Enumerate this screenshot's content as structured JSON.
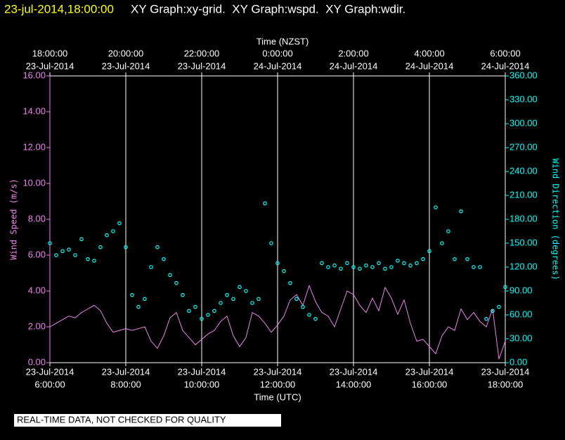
{
  "chart_data": {
    "type": "xy",
    "title_time": "23-jul-2014,18:00:00",
    "title": "XY Graph:xy-grid.  XY Graph:wspd.  XY Graph:wdir.",
    "xlabel": "Time (UTC)",
    "x2label": "Time (NZST)",
    "ylabel": "Wind Speed (m/s)",
    "y2label": "Wind Direction (degrees)",
    "footer": "REAL-TIME DATA, NOT CHECKED FOR QUALITY",
    "grid": true,
    "xlim": [
      6,
      18
    ],
    "xticks": [
      {
        "value": 6,
        "label": [
          "23-Jul-2014",
          "6:00:00"
        ]
      },
      {
        "value": 8,
        "label": [
          "23-Jul-2014",
          "8:00:00"
        ]
      },
      {
        "value": 10,
        "label": [
          "23-Jul-2014",
          "10:00:00"
        ]
      },
      {
        "value": 12,
        "label": [
          "23-Jul-2014",
          "12:00:00"
        ]
      },
      {
        "value": 14,
        "label": [
          "23-Jul-2014",
          "14:00:00"
        ]
      },
      {
        "value": 16,
        "label": [
          "23-Jul-2014",
          "16:00:00"
        ]
      },
      {
        "value": 18,
        "label": [
          "23-Jul-2014",
          "18:00:00"
        ]
      }
    ],
    "x2ticks": [
      {
        "value": 6,
        "label": [
          "18:00:00",
          "23-Jul-2014"
        ]
      },
      {
        "value": 8,
        "label": [
          "20:00:00",
          "23-Jul-2014"
        ]
      },
      {
        "value": 10,
        "label": [
          "22:00:00",
          "23-Jul-2014"
        ]
      },
      {
        "value": 12,
        "label": [
          "0:00:00",
          "24-Jul-2014"
        ]
      },
      {
        "value": 14,
        "label": [
          "2:00:00",
          "24-Jul-2014"
        ]
      },
      {
        "value": 16,
        "label": [
          "4:00:00",
          "24-Jul-2014"
        ]
      },
      {
        "value": 18,
        "label": [
          "6:00:00",
          "24-Jul-2014"
        ]
      }
    ],
    "ylim": [
      0,
      16
    ],
    "yticks": [
      {
        "value": 0,
        "label": "0.00"
      },
      {
        "value": 2,
        "label": "2.00"
      },
      {
        "value": 4,
        "label": "4.00"
      },
      {
        "value": 6,
        "label": "6.00"
      },
      {
        "value": 8,
        "label": "8.00"
      },
      {
        "value": 10,
        "label": "10.00"
      },
      {
        "value": 12,
        "label": "12.00"
      },
      {
        "value": 14,
        "label": "14.00"
      },
      {
        "value": 16,
        "label": "16.00"
      }
    ],
    "y2lim": [
      0,
      360
    ],
    "y2ticks": [
      {
        "value": 0,
        "label": "0.00"
      },
      {
        "value": 30,
        "label": "30.00"
      },
      {
        "value": 60,
        "label": "60.00"
      },
      {
        "value": 90,
        "label": "90.00"
      },
      {
        "value": 120,
        "label": "120.00"
      },
      {
        "value": 150,
        "label": "150.00"
      },
      {
        "value": 180,
        "label": "180.00"
      },
      {
        "value": 210,
        "label": "210.00"
      },
      {
        "value": 240,
        "label": "240.00"
      },
      {
        "value": 270,
        "label": "270.00"
      },
      {
        "value": 300,
        "label": "300.00"
      },
      {
        "value": 330,
        "label": "330.00"
      },
      {
        "value": 360,
        "label": "360.00"
      }
    ],
    "x": [
      6,
      6.1667,
      6.3333,
      6.5,
      6.6667,
      6.8333,
      7,
      7.1667,
      7.3333,
      7.5,
      7.6667,
      7.8333,
      8,
      8.1667,
      8.3333,
      8.5,
      8.6667,
      8.8333,
      9,
      9.1667,
      9.3333,
      9.5,
      9.6667,
      9.8333,
      10,
      10.1667,
      10.3333,
      10.5,
      10.6667,
      10.8333,
      11,
      11.1667,
      11.3333,
      11.5,
      11.6667,
      11.8333,
      12,
      12.1667,
      12.3333,
      12.5,
      12.6667,
      12.8333,
      13,
      13.1667,
      13.3333,
      13.5,
      13.6667,
      13.8333,
      14,
      14.1667,
      14.3333,
      14.5,
      14.6667,
      14.8333,
      15,
      15.1667,
      15.3333,
      15.5,
      15.6667,
      15.8333,
      16,
      16.1667,
      16.3333,
      16.5,
      16.6667,
      16.8333,
      17,
      17.1667,
      17.3333,
      17.5,
      17.6667,
      17.8333,
      18
    ],
    "series": [
      {
        "name": "wspd",
        "kind": "line",
        "color": "#ee82ee",
        "axis": "y",
        "values": [
          2.0,
          2.2,
          2.4,
          2.6,
          2.5,
          2.8,
          3.0,
          3.2,
          2.9,
          2.2,
          1.7,
          1.8,
          1.9,
          1.8,
          1.9,
          2.0,
          1.2,
          0.8,
          1.5,
          2.5,
          2.8,
          1.8,
          1.4,
          1.0,
          1.3,
          1.6,
          1.8,
          2.3,
          2.6,
          1.5,
          0.9,
          1.4,
          2.8,
          2.6,
          2.2,
          1.7,
          2.1,
          2.6,
          3.5,
          3.8,
          3.2,
          4.3,
          3.4,
          2.8,
          2.6,
          2.0,
          3.0,
          4.0,
          3.8,
          3.2,
          2.8,
          3.6,
          2.9,
          4.2,
          3.6,
          2.7,
          3.5,
          2.2,
          1.2,
          1.3,
          0.9,
          0.5,
          1.5,
          2.0,
          1.8,
          3.0,
          2.4,
          2.8,
          2.3,
          2.0,
          3.0,
          0.2,
          1.2
        ]
      },
      {
        "name": "wdir",
        "kind": "scatter",
        "color": "#00ffff",
        "axis": "y2",
        "values": [
          150,
          135,
          140,
          142,
          135,
          155,
          130,
          128,
          145,
          160,
          165,
          175,
          145,
          85,
          70,
          80,
          120,
          145,
          130,
          110,
          100,
          85,
          65,
          70,
          55,
          60,
          65,
          75,
          85,
          80,
          95,
          90,
          75,
          80,
          200,
          150,
          125,
          115,
          100,
          80,
          70,
          60,
          55,
          125,
          120,
          122,
          118,
          125,
          120,
          118,
          122,
          120,
          125,
          118,
          120,
          128,
          125,
          122,
          125,
          130,
          140,
          195,
          150,
          165,
          130,
          190,
          130,
          120,
          120,
          55,
          65,
          70,
          95
        ]
      }
    ]
  }
}
